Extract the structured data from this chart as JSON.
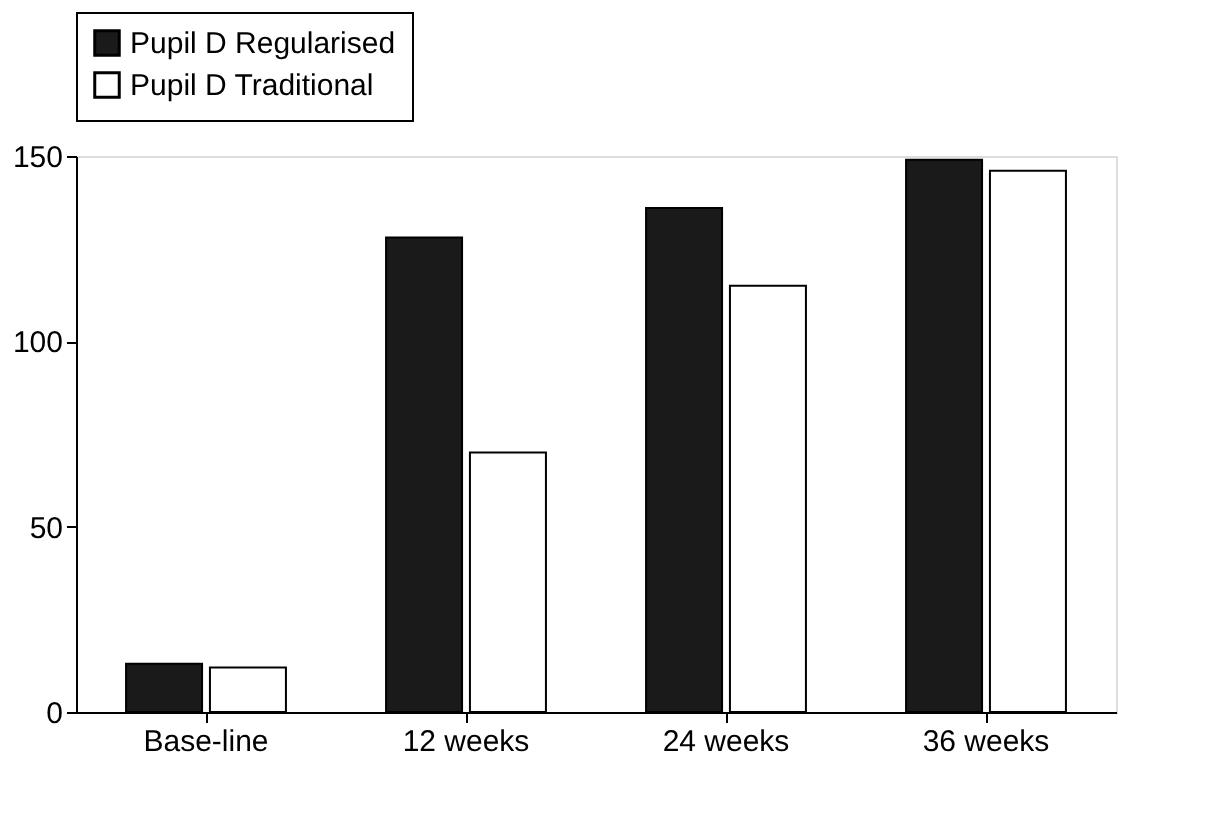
{
  "chart_data": {
    "type": "bar",
    "categories": [
      "Base-line",
      "12 weeks",
      "24 weeks",
      "36 weeks"
    ],
    "series": [
      {
        "name": "Pupil D Regularised",
        "color": "#1a1a1a",
        "values": [
          13,
          128,
          136,
          149
        ]
      },
      {
        "name": "Pupil D Traditional",
        "color": "#ffffff",
        "values": [
          12,
          70,
          115,
          146
        ]
      }
    ],
    "ylim": [
      0,
      150
    ],
    "yticks": [
      0,
      50,
      100,
      150
    ],
    "grid": false,
    "legend": "top"
  }
}
